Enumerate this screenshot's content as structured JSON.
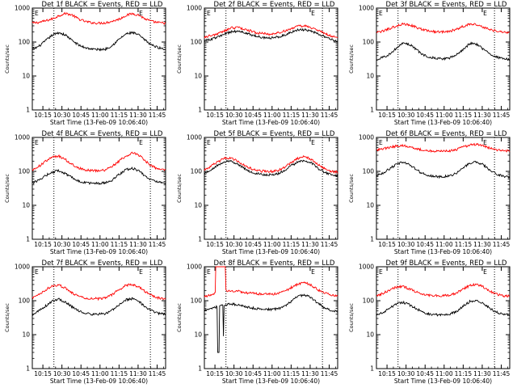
{
  "chart_data": [
    {
      "type": "line",
      "title": "Det 1f BLACK = Events, RED = LLD",
      "ylabel": "Counts/sec",
      "xlabel": "Start Time (13-Feb-09 10:06:40)",
      "ylim": [
        1,
        1000
      ],
      "yscale": "log",
      "yticks": [
        "1",
        "10",
        "100",
        "1000"
      ],
      "xticks": [
        "10:15",
        "10:30",
        "10:45",
        "11:00",
        "11:15",
        "11:30",
        "11:45"
      ],
      "xrange_min": [
        0,
        105
      ],
      "vlines_min": [
        17,
        93
      ],
      "markers": [
        "E",
        "E"
      ],
      "series": [
        {
          "color": "#ff0000",
          "base": [
            360,
            380,
            420,
            480,
            600,
            700,
            620,
            470,
            400,
            370,
            360,
            370,
            410,
            470,
            600,
            690,
            620,
            470,
            400,
            370,
            360
          ]
        },
        {
          "color": "#000000",
          "base": [
            60,
            75,
            110,
            160,
            190,
            160,
            110,
            80,
            68,
            62,
            60,
            62,
            80,
            120,
            170,
            190,
            160,
            110,
            80,
            68,
            60
          ]
        }
      ]
    },
    {
      "type": "line",
      "title": "Det 2f BLACK = Events, RED = LLD",
      "ylabel": "Counts/sec",
      "xlabel": "Start Time (13-Feb-09 10:06:40)",
      "ylim": [
        1,
        1000
      ],
      "yscale": "log",
      "yticks": [
        "1",
        "10",
        "100",
        "1000"
      ],
      "xticks": [
        "10:15",
        "10:30",
        "10:45",
        "11:00",
        "11:15",
        "11:30",
        "11:45"
      ],
      "xrange_min": [
        0,
        105
      ],
      "vlines_min": [
        17,
        93
      ],
      "markers": [
        "E",
        "E"
      ],
      "series": [
        {
          "color": "#ff0000",
          "base": [
            140,
            155,
            175,
            210,
            260,
            270,
            240,
            210,
            185,
            175,
            170,
            185,
            210,
            250,
            290,
            300,
            270,
            220,
            180,
            150,
            130
          ]
        },
        {
          "color": "#000000",
          "base": [
            110,
            120,
            140,
            170,
            200,
            210,
            190,
            165,
            145,
            135,
            130,
            140,
            160,
            195,
            225,
            230,
            210,
            175,
            145,
            120,
            105
          ]
        }
      ]
    },
    {
      "type": "line",
      "title": "Det 3f BLACK = Events, RED = LLD",
      "ylabel": "Counts/sec",
      "xlabel": "Start Time (13-Feb-09 10:06:40)",
      "ylim": [
        1,
        1000
      ],
      "yscale": "log",
      "yticks": [
        "1",
        "10",
        "100",
        "1000"
      ],
      "xticks": [
        "10:15",
        "10:30",
        "10:45",
        "11:00",
        "11:15",
        "11:30",
        "11:45"
      ],
      "xrange_min": [
        0,
        105
      ],
      "vlines_min": [
        17,
        93
      ],
      "markers": [
        "E",
        "E"
      ],
      "series": [
        {
          "color": "#ff0000",
          "base": [
            190,
            210,
            250,
            300,
            340,
            320,
            270,
            230,
            210,
            200,
            200,
            210,
            240,
            290,
            340,
            330,
            280,
            230,
            210,
            195,
            190
          ]
        },
        {
          "color": "#000000",
          "base": [
            30,
            35,
            45,
            65,
            95,
            85,
            60,
            42,
            36,
            33,
            32,
            34,
            42,
            60,
            90,
            88,
            62,
            44,
            36,
            32,
            30
          ]
        }
      ]
    },
    {
      "type": "line",
      "title": "Det 4f BLACK = Events, RED = LLD",
      "ylabel": "Counts/sec",
      "xlabel": "Start Time (13-Feb-09 10:06:40)",
      "ylim": [
        1,
        1000
      ],
      "yscale": "log",
      "yticks": [
        "1",
        "10",
        "100",
        "1000"
      ],
      "xticks": [
        "10:15",
        "10:30",
        "10:45",
        "11:00",
        "11:15",
        "11:30",
        "11:45"
      ],
      "xrange_min": [
        0,
        105
      ],
      "vlines_min": [
        17,
        93
      ],
      "markers": [
        "E",
        "E"
      ],
      "series": [
        {
          "color": "#ff0000",
          "base": [
            110,
            140,
            200,
            260,
            280,
            220,
            160,
            125,
            110,
            105,
            105,
            110,
            140,
            200,
            280,
            350,
            300,
            200,
            140,
            115,
            110
          ]
        },
        {
          "color": "#000000",
          "base": [
            45,
            55,
            75,
            95,
            105,
            85,
            65,
            52,
            46,
            44,
            44,
            46,
            55,
            80,
            110,
            125,
            105,
            70,
            55,
            47,
            44
          ]
        }
      ]
    },
    {
      "type": "line",
      "title": "Det 5f BLACK = Events, RED = LLD",
      "ylabel": "Counts/sec",
      "xlabel": "Start Time (13-Feb-09 10:06:40)",
      "ylim": [
        1,
        1000
      ],
      "yscale": "log",
      "yticks": [
        "1",
        "10",
        "100",
        "1000"
      ],
      "xticks": [
        "10:15",
        "10:30",
        "10:45",
        "11:00",
        "11:15",
        "11:30",
        "11:45"
      ],
      "xrange_min": [
        0,
        105
      ],
      "vlines_min": [
        17,
        93
      ],
      "markers": [
        "E",
        "E"
      ],
      "series": [
        {
          "color": "#ff0000",
          "base": [
            110,
            140,
            190,
            240,
            250,
            200,
            150,
            120,
            105,
            100,
            100,
            105,
            130,
            180,
            240,
            270,
            230,
            160,
            120,
            100,
            95
          ]
        },
        {
          "color": "#000000",
          "base": [
            85,
            110,
            150,
            190,
            200,
            160,
            120,
            95,
            85,
            80,
            80,
            85,
            105,
            145,
            190,
            210,
            180,
            125,
            95,
            80,
            75
          ]
        }
      ]
    },
    {
      "type": "line",
      "title": "Det 6f BLACK = Events, RED = LLD",
      "ylabel": "Counts/sec",
      "xlabel": "Start Time (13-Feb-09 10:06:40)",
      "ylim": [
        1,
        1000
      ],
      "yscale": "log",
      "yticks": [
        "1",
        "10",
        "100",
        "1000"
      ],
      "xticks": [
        "10:15",
        "10:30",
        "10:45",
        "11:00",
        "11:15",
        "11:30",
        "11:45"
      ],
      "xrange_min": [
        0,
        105
      ],
      "vlines_min": [
        17,
        93
      ],
      "markers": [
        "E",
        "E"
      ],
      "series": [
        {
          "color": "#ff0000",
          "base": [
            430,
            460,
            510,
            560,
            580,
            540,
            470,
            420,
            400,
            395,
            395,
            400,
            440,
            520,
            600,
            620,
            560,
            480,
            430,
            410,
            400
          ]
        },
        {
          "color": "#000000",
          "base": [
            75,
            90,
            120,
            160,
            190,
            160,
            110,
            85,
            75,
            70,
            70,
            73,
            90,
            125,
            170,
            190,
            160,
            110,
            85,
            72,
            68
          ]
        }
      ]
    },
    {
      "type": "line",
      "title": "Det 7f BLACK = Events, RED = LLD",
      "ylabel": "Counts/sec",
      "xlabel": "Start Time (13-Feb-09 10:06:40)",
      "ylim": [
        1,
        1000
      ],
      "yscale": "log",
      "yticks": [
        "1",
        "10",
        "100",
        "1000"
      ],
      "xticks": [
        "10:15",
        "10:30",
        "10:45",
        "11:00",
        "11:15",
        "11:30",
        "11:45"
      ],
      "xrange_min": [
        0,
        105
      ],
      "vlines_min": [
        17,
        93
      ],
      "markers": [
        "E",
        "E"
      ],
      "series": [
        {
          "color": "#ff0000",
          "base": [
            120,
            150,
            210,
            270,
            290,
            230,
            170,
            135,
            120,
            115,
            115,
            120,
            150,
            210,
            280,
            300,
            250,
            180,
            140,
            120,
            115
          ]
        },
        {
          "color": "#000000",
          "base": [
            40,
            50,
            70,
            95,
            110,
            90,
            65,
            50,
            43,
            40,
            40,
            42,
            52,
            75,
            105,
            115,
            95,
            65,
            50,
            42,
            40
          ]
        }
      ]
    },
    {
      "type": "line",
      "title": "Det 8f BLACK = Events, RED = LLD",
      "ylabel": "Counts/sec",
      "xlabel": "Start Time (13-Feb-09 10:06:40)",
      "ylim": [
        1,
        1000
      ],
      "yscale": "log",
      "yticks": [
        "1",
        "10",
        "100",
        "1000"
      ],
      "xticks": [
        "10:15",
        "10:30",
        "10:45",
        "11:00",
        "11:15",
        "11:30",
        "11:45"
      ],
      "xrange_min": [
        0,
        105
      ],
      "vlines_min": [
        17,
        93
      ],
      "markers": [
        "E",
        "E"
      ],
      "series": [
        {
          "color": "#ff0000",
          "base": [
            130,
            150,
            170,
            190,
            200,
            190,
            175,
            165,
            160,
            155,
            155,
            160,
            185,
            240,
            310,
            340,
            290,
            210,
            170,
            150,
            140
          ],
          "spikes": [
            [
              11,
              1000,
              5
            ],
            [
              15,
              1000,
              4
            ]
          ]
        },
        {
          "color": "#000000",
          "base": [
            50,
            58,
            68,
            75,
            80,
            75,
            68,
            62,
            58,
            55,
            55,
            57,
            68,
            95,
            135,
            150,
            125,
            85,
            62,
            52,
            48
          ],
          "spikes": [
            [
              11,
              3,
              2
            ],
            [
              15,
              9,
              1
            ]
          ]
        }
      ]
    },
    {
      "type": "line",
      "title": "Det 9f BLACK = Events, RED = LLD",
      "ylabel": "Counts/sec",
      "xlabel": "Start Time (13-Feb-09 10:06:40)",
      "ylim": [
        1,
        1000
      ],
      "yscale": "log",
      "yticks": [
        "1",
        "10",
        "100",
        "1000"
      ],
      "xticks": [
        "10:15",
        "10:30",
        "10:45",
        "11:00",
        "11:15",
        "11:30",
        "11:45"
      ],
      "xrange_min": [
        0,
        105
      ],
      "vlines_min": [
        17,
        93
      ],
      "markers": [
        "E",
        "E"
      ],
      "series": [
        {
          "color": "#ff0000",
          "base": [
            140,
            165,
            210,
            250,
            260,
            220,
            180,
            155,
            145,
            140,
            140,
            145,
            170,
            220,
            280,
            300,
            260,
            190,
            155,
            140,
            135
          ]
        },
        {
          "color": "#000000",
          "base": [
            38,
            45,
            60,
            80,
            90,
            75,
            58,
            46,
            40,
            38,
            38,
            40,
            48,
            68,
            95,
            105,
            85,
            60,
            46,
            40,
            38
          ]
        }
      ]
    }
  ]
}
